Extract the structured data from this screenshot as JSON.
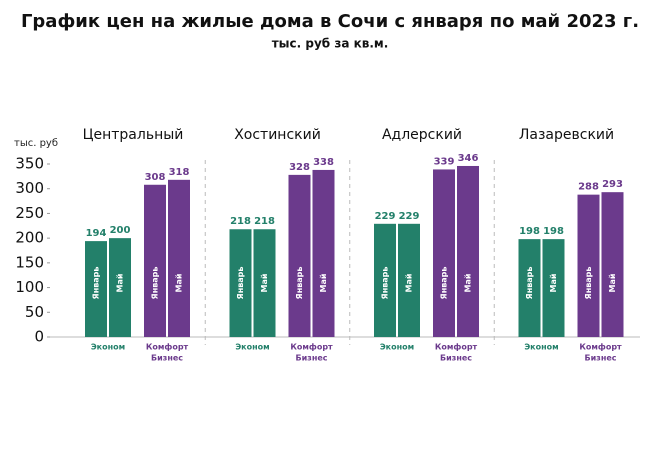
{
  "chart_data": {
    "type": "bar",
    "title": "График цен на жилые дома в Сочи с января по май 2023 г.",
    "subtitle": "тыс. руб за кв.м.",
    "y_label": "тыс. руб",
    "ylim": [
      0,
      350
    ],
    "yticks": [
      0,
      50,
      100,
      150,
      200,
      250,
      300,
      350
    ],
    "bar_names": [
      "Январь",
      "Май"
    ],
    "segments": [
      {
        "name": [
          "Эконом"
        ],
        "color": "#23806a"
      },
      {
        "name": [
          "Комфорт",
          "Бизнес"
        ],
        "color": "#6b3a8c"
      }
    ],
    "groups": [
      {
        "name": "Центральный",
        "values": [
          [
            194,
            200
          ],
          [
            308,
            318
          ]
        ]
      },
      {
        "name": "Хостинский",
        "values": [
          [
            218,
            218
          ],
          [
            328,
            338
          ]
        ]
      },
      {
        "name": "Адлерский",
        "values": [
          [
            229,
            229
          ],
          [
            339,
            346
          ]
        ]
      },
      {
        "name": "Лазаревский",
        "values": [
          [
            198,
            198
          ],
          [
            288,
            293
          ]
        ]
      }
    ]
  }
}
